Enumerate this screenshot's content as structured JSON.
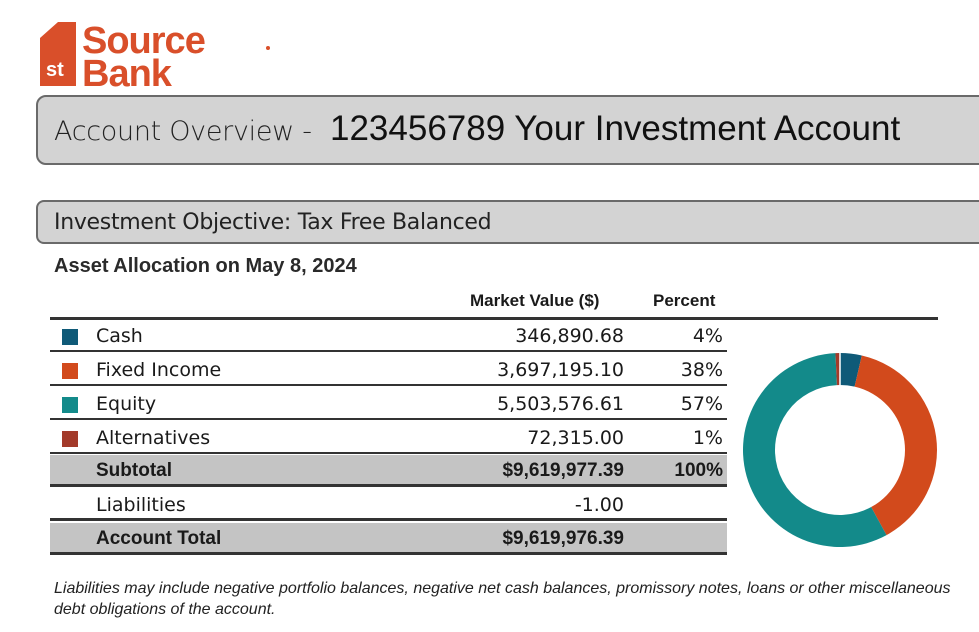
{
  "logo": {
    "text_top": "Source",
    "text_bottom": "Bank",
    "badge": "1st",
    "color": "#d94f2a"
  },
  "header": {
    "prefix": "Account Overview -",
    "account": "123456789 Your Investment Account"
  },
  "objective": "Investment Objective: Tax Free Balanced",
  "allocation": {
    "title": "Asset Allocation on May 8, 2024",
    "columns": {
      "market_value": "Market Value ($)",
      "percent": "Percent"
    },
    "rows": [
      {
        "label": "Cash",
        "value": "346,890.68",
        "percent": "4%",
        "color": "#0f5a78"
      },
      {
        "label": "Fixed Income",
        "value": "3,697,195.10",
        "percent": "38%",
        "color": "#d24a1c"
      },
      {
        "label": "Equity",
        "value": "5,503,576.61",
        "percent": "57%",
        "color": "#138a8a"
      },
      {
        "label": "Alternatives",
        "value": "72,315.00",
        "percent": "1%",
        "color": "#a33a2a"
      }
    ],
    "subtotal": {
      "label": "Subtotal",
      "value": "$9,619,977.39",
      "percent": "100%"
    },
    "liabilities": {
      "label": "Liabilities",
      "value": "-1.00"
    },
    "total": {
      "label": "Account Total",
      "value": "$9,619,976.39"
    }
  },
  "chart_data": {
    "type": "pie",
    "style": "donut",
    "categories": [
      "Cash",
      "Fixed Income",
      "Equity",
      "Alternatives"
    ],
    "values": [
      346890.68,
      3697195.1,
      5503576.61,
      72315.0
    ],
    "colors": [
      "#0f5a78",
      "#d24a1c",
      "#138a8a",
      "#a33a2a"
    ],
    "start": "top",
    "direction": "clockwise"
  },
  "footnote": "Liabilities may include negative portfolio balances, negative net cash balances, promissory notes, loans or other miscellaneous debt obligations of the account."
}
